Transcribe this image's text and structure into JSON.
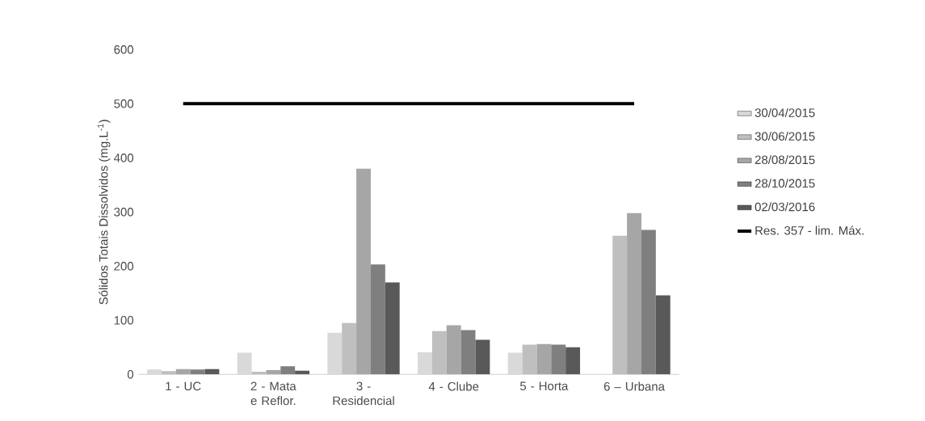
{
  "chart_data": {
    "type": "bar",
    "ylabel": "Sólidos Totais Dissolvidos (mg.L$^{-1}$)",
    "categories": [
      "1 - UC",
      "2 - Mata e Reflor.",
      "3 - Residencial",
      "4 - Clube",
      "5 - Horta",
      "6 – Urbana"
    ],
    "series": [
      {
        "name": "30/04/2015",
        "color": "#d9d9d9",
        "values": [
          9,
          40,
          77,
          41,
          40,
          null
        ]
      },
      {
        "name": "30/06/2015",
        "color": "#bfbfbf",
        "values": [
          6,
          5,
          95,
          80,
          55,
          256
        ]
      },
      {
        "name": "28/08/2015",
        "color": "#a6a6a6",
        "values": [
          10,
          8,
          380,
          91,
          56,
          298
        ]
      },
      {
        "name": "28/10/2015",
        "color": "#7f7f7f",
        "values": [
          9,
          15,
          203,
          82,
          55,
          267
        ]
      },
      {
        "name": "02/03/2016",
        "color": "#595959",
        "values": [
          10,
          7,
          170,
          64,
          50,
          146
        ]
      },
      {
        "name": "Res. 357 - lim. Máx.",
        "color": "#000000",
        "type": "line",
        "values": [
          500,
          500,
          500,
          500,
          500,
          500
        ]
      }
    ],
    "ylim": [
      0,
      600
    ],
    "yticks": [
      0,
      100,
      200,
      300,
      400,
      500,
      600
    ],
    "grid": false,
    "legend": "right"
  }
}
